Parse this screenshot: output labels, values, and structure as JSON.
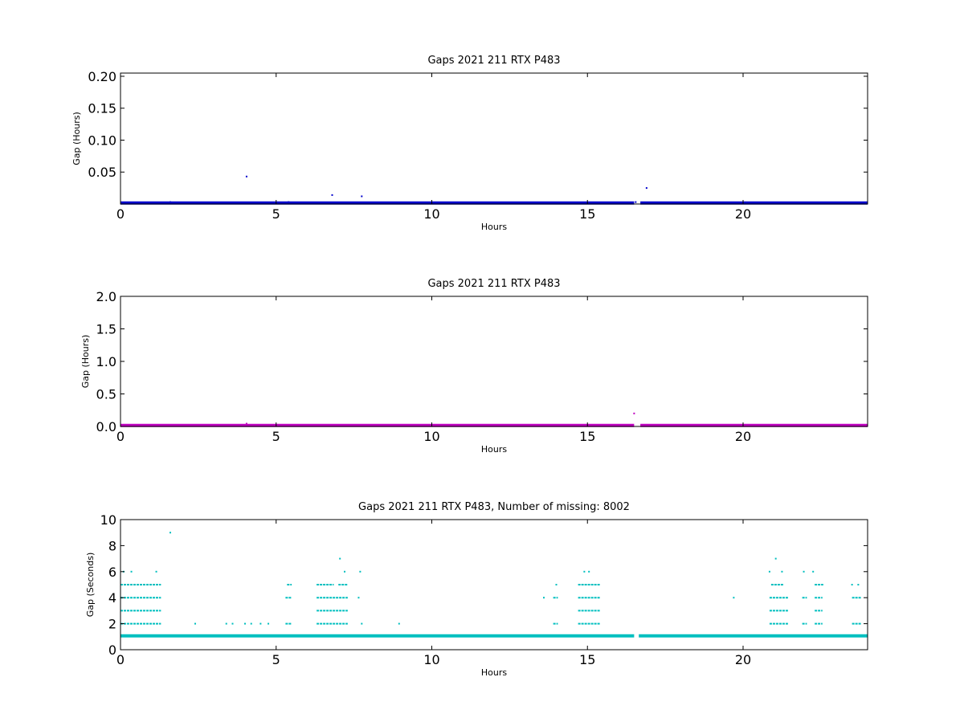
{
  "chart_data": [
    {
      "type": "scatter",
      "title": "Gaps 2021 211 RTX  P483",
      "xlabel": "Hours",
      "ylabel": "Gap (Hours)",
      "xlim": [
        0,
        24
      ],
      "ylim": [
        0,
        0.205
      ],
      "xticks": [
        0,
        5,
        10,
        15,
        20
      ],
      "yticks": [
        0.05,
        0.1,
        0.15,
        0.2
      ],
      "ytick_labels": [
        "0.05",
        "0.10",
        "0.15",
        "0.20"
      ],
      "grid": false,
      "color": "#0000cc",
      "series": [
        {
          "baseline": {
            "y": 0.0003,
            "ranges": [
              [
                0,
                16.5
              ],
              [
                16.7,
                24
              ]
            ]
          },
          "points": [
            [
              1.6,
              0.003
            ],
            [
              4.05,
              0.043
            ],
            [
              5.4,
              0.003
            ],
            [
              6.8,
              0.014
            ],
            [
              7.75,
              0.012
            ],
            [
              16.55,
              0.003
            ],
            [
              16.9,
              0.025
            ]
          ]
        }
      ]
    },
    {
      "type": "scatter",
      "title": "Gaps 2021 211 RTX  P483",
      "xlabel": "Hours",
      "ylabel": "Gap (Hours)",
      "xlim": [
        0,
        24
      ],
      "ylim": [
        0,
        2.0
      ],
      "xticks": [
        0,
        5,
        10,
        15,
        20
      ],
      "yticks": [
        0.0,
        0.5,
        1.0,
        1.5,
        2.0
      ],
      "ytick_labels": [
        "0.0",
        "0.5",
        "1.0",
        "1.5",
        "2.0"
      ],
      "grid": false,
      "color": "#bf00bf",
      "series": [
        {
          "baseline": {
            "y": 0.003,
            "ranges": [
              [
                0,
                16.5
              ],
              [
                16.7,
                24
              ]
            ]
          },
          "points": [
            [
              4.05,
              0.043
            ],
            [
              16.5,
              0.2
            ],
            [
              16.9,
              0.025
            ]
          ]
        }
      ]
    },
    {
      "type": "scatter",
      "title": "Gaps 2021 211 RTX  P483, Number of missing: 8002",
      "xlabel": "Hours",
      "ylabel": "Gap (Seconds)",
      "xlim": [
        0,
        24
      ],
      "ylim": [
        0,
        10
      ],
      "xticks": [
        0,
        5,
        10,
        15,
        20
      ],
      "yticks": [
        0,
        2,
        4,
        6,
        8,
        10
      ],
      "ytick_labels": [
        "0",
        "2",
        "4",
        "6",
        "8",
        "10"
      ],
      "grid": false,
      "color": "#00bfbf",
      "series": [
        {
          "baseline": {
            "y": 1,
            "ranges": [
              [
                0,
                16.5
              ],
              [
                16.65,
                24
              ]
            ]
          },
          "level_ranges": [
            {
              "y": 2,
              "ranges": [
                [
                  0,
                  1.3
                ],
                [
                  5.3,
                  5.5
                ],
                [
                  6.3,
                  7.3
                ],
                [
                  13.9,
                  14.05
                ],
                [
                  14.7,
                  15.4
                ],
                [
                  20.85,
                  21.45
                ],
                [
                  21.9,
                  22.05
                ],
                [
                  22.3,
                  22.55
                ],
                [
                  23.5,
                  23.8
                ]
              ]
            },
            {
              "y": 3,
              "ranges": [
                [
                  0,
                  1.3
                ],
                [
                  6.3,
                  7.3
                ],
                [
                  14.7,
                  15.4
                ],
                [
                  20.85,
                  21.45
                ],
                [
                  22.3,
                  22.55
                ]
              ]
            },
            {
              "y": 4,
              "ranges": [
                [
                  0,
                  1.3
                ],
                [
                  5.3,
                  5.5
                ],
                [
                  6.3,
                  7.3
                ],
                [
                  13.9,
                  14.05
                ],
                [
                  14.7,
                  15.4
                ],
                [
                  20.85,
                  21.45
                ],
                [
                  21.9,
                  22.05
                ],
                [
                  22.3,
                  22.55
                ],
                [
                  23.5,
                  23.8
                ]
              ]
            },
            {
              "y": 5,
              "ranges": [
                [
                  0,
                  1.3
                ],
                [
                  5.35,
                  5.5
                ],
                [
                  6.3,
                  6.85
                ],
                [
                  7.0,
                  7.3
                ],
                [
                  14.7,
                  15.4
                ],
                [
                  20.9,
                  21.3
                ],
                [
                  22.3,
                  22.55
                ]
              ]
            }
          ],
          "points": [
            [
              0.1,
              6
            ],
            [
              0.35,
              6
            ],
            [
              1.15,
              6
            ],
            [
              1.6,
              9
            ],
            [
              2.4,
              2
            ],
            [
              3.4,
              2
            ],
            [
              3.6,
              2
            ],
            [
              4.0,
              2
            ],
            [
              4.2,
              2
            ],
            [
              4.5,
              2
            ],
            [
              4.75,
              2
            ],
            [
              7.05,
              7
            ],
            [
              7.2,
              6
            ],
            [
              7.7,
              6
            ],
            [
              7.65,
              4
            ],
            [
              7.75,
              2
            ],
            [
              8.95,
              2
            ],
            [
              13.6,
              4
            ],
            [
              14.0,
              5
            ],
            [
              14.9,
              6
            ],
            [
              15.05,
              6
            ],
            [
              19.7,
              4
            ],
            [
              20.85,
              6
            ],
            [
              21.05,
              7
            ],
            [
              21.25,
              6
            ],
            [
              21.95,
              6
            ],
            [
              22.25,
              6
            ],
            [
              22.55,
              5
            ],
            [
              23.5,
              5
            ],
            [
              23.7,
              5
            ]
          ]
        }
      ]
    }
  ]
}
